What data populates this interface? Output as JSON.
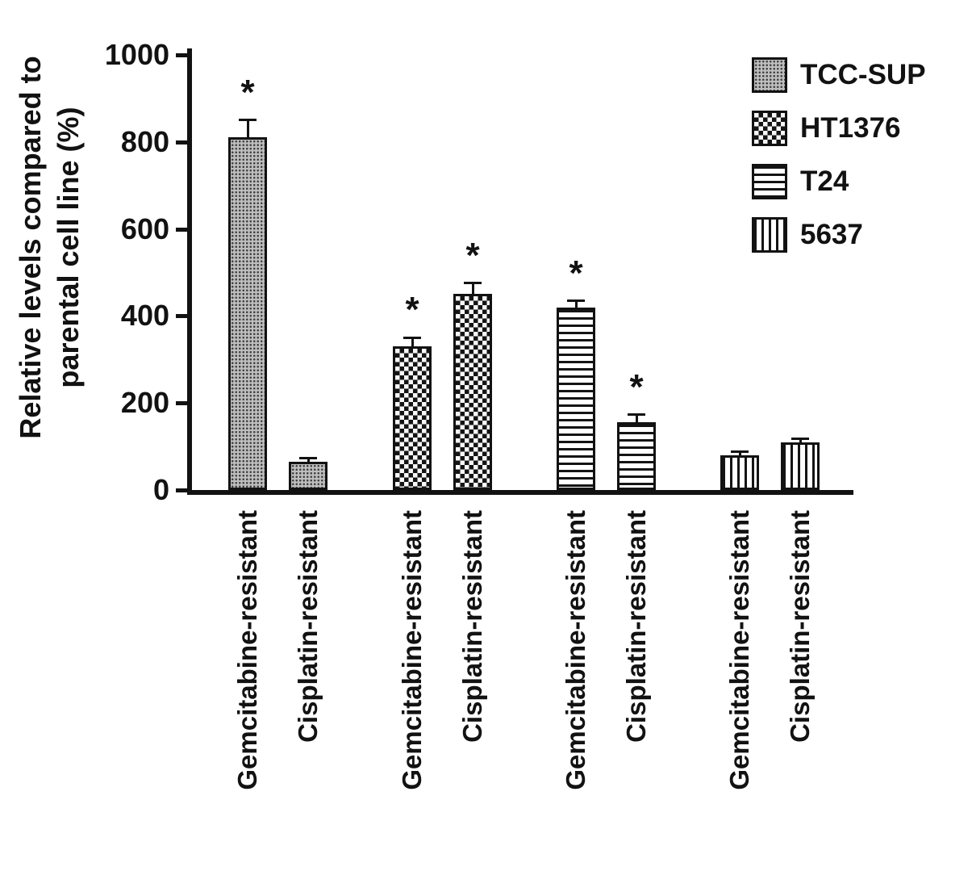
{
  "figure": {
    "ylabel_line1": "Relative levels compared to",
    "ylabel_line2": "parental cell line (%)"
  },
  "chart_data": {
    "type": "bar",
    "title": "",
    "xlabel": "",
    "ylabel": "Relative levels compared to parental cell line (%)",
    "ylim": [
      0,
      1000
    ],
    "yticks": [
      0,
      200,
      400,
      600,
      800,
      1000
    ],
    "grid": false,
    "legend_position": "top-right",
    "significance_marker": "*",
    "categories": [
      "Gemcitabine-resistant",
      "Cisplatin-resistant"
    ],
    "series": [
      {
        "name": "TCC-SUP",
        "pattern": "stipple",
        "values": [
          810,
          65
        ],
        "errors": [
          40,
          8
        ],
        "significant": [
          true,
          false
        ]
      },
      {
        "name": "HT1376",
        "pattern": "checker",
        "values": [
          330,
          450
        ],
        "errors": [
          20,
          25
        ],
        "significant": [
          true,
          true
        ]
      },
      {
        "name": "T24",
        "pattern": "hlines",
        "values": [
          420,
          155
        ],
        "errors": [
          15,
          18
        ],
        "significant": [
          true,
          true
        ]
      },
      {
        "name": "5637",
        "pattern": "vlines",
        "values": [
          80,
          110
        ],
        "errors": [
          8,
          8
        ],
        "significant": [
          false,
          false
        ]
      }
    ]
  }
}
